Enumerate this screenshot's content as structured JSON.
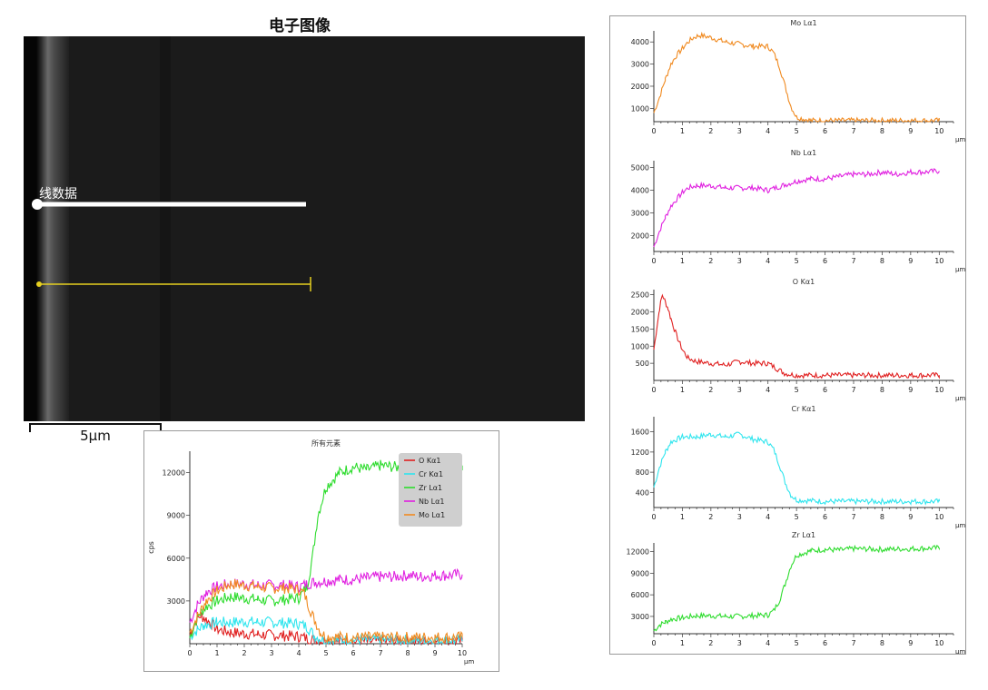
{
  "sem": {
    "title": "电子图像",
    "line_label": "线数据",
    "scale_label": "5μm"
  },
  "chart_data": [
    {
      "id": "all",
      "type": "line",
      "title": "所有元素",
      "ylabel": "cps",
      "xunit": "μm",
      "xlim": [
        0,
        10
      ],
      "ylim": [
        0,
        13500
      ],
      "xticks": [
        0,
        1,
        2,
        3,
        4,
        5,
        6,
        7,
        8,
        9,
        10
      ],
      "yticks": [
        3000,
        6000,
        9000,
        12000
      ],
      "legend_position": "top-right",
      "series": [
        {
          "name": "O Kα1",
          "color": "#e02020",
          "x": [
            0,
            0.2,
            0.4,
            0.6,
            0.8,
            1,
            1.5,
            2,
            2.5,
            3,
            3.5,
            4,
            4.5,
            5,
            6,
            7,
            8,
            9,
            10
          ],
          "y": [
            600,
            1500,
            2000,
            1700,
            1400,
            1000,
            800,
            700,
            650,
            600,
            550,
            500,
            300,
            200,
            150,
            150,
            150,
            150,
            150
          ]
        },
        {
          "name": "Cr Kα1",
          "color": "#2ee5ee",
          "x": [
            0,
            0.3,
            0.5,
            1,
            1.5,
            2,
            2.5,
            3,
            3.5,
            4,
            4.3,
            4.6,
            5,
            6,
            7,
            8,
            9,
            10
          ],
          "y": [
            500,
            1000,
            1300,
            1500,
            1500,
            1550,
            1500,
            1500,
            1450,
            1400,
            1200,
            500,
            250,
            250,
            250,
            250,
            250,
            250
          ]
        },
        {
          "name": "Zr Lα1",
          "color": "#2edc2e",
          "x": [
            0,
            0.2,
            0.4,
            0.6,
            1,
            1.5,
            2,
            2.5,
            3,
            3.5,
            4,
            4.3,
            4.5,
            4.7,
            5,
            5.5,
            6,
            6.5,
            7,
            8,
            9,
            10
          ],
          "y": [
            400,
            1500,
            2200,
            2600,
            3000,
            3300,
            3200,
            3100,
            3000,
            3100,
            3200,
            4000,
            6000,
            9000,
            11000,
            12000,
            12400,
            12200,
            12500,
            12300,
            12400,
            12500
          ]
        },
        {
          "name": "Nb Lα1",
          "color": "#e020e0",
          "x": [
            0,
            0.3,
            0.6,
            1,
            1.5,
            2,
            2.5,
            3,
            3.5,
            4,
            4.5,
            5,
            5.5,
            6,
            6.5,
            7,
            7.5,
            8,
            8.5,
            9,
            9.5,
            10
          ],
          "y": [
            1500,
            2800,
            3600,
            4000,
            4200,
            4200,
            4100,
            4100,
            4100,
            4000,
            4300,
            4400,
            4500,
            4500,
            4600,
            4700,
            4700,
            4800,
            4700,
            4800,
            4800,
            4850
          ]
        },
        {
          "name": "Mo Lα1",
          "color": "#f08a20",
          "x": [
            0,
            0.3,
            0.6,
            1,
            1.5,
            2,
            2.5,
            3,
            3.5,
            4,
            4.2,
            4.5,
            4.8,
            5,
            6,
            7,
            8,
            9,
            10
          ],
          "y": [
            800,
            2000,
            3000,
            3700,
            4200,
            4100,
            4000,
            3900,
            3900,
            3800,
            3500,
            2000,
            800,
            500,
            450,
            450,
            450,
            450,
            450
          ]
        }
      ]
    },
    {
      "id": "mo",
      "type": "line",
      "title": "Mo Lα1",
      "xunit": "μm",
      "xlim": [
        0,
        10.5
      ],
      "ylim": [
        400,
        4500
      ],
      "xticks": [
        0,
        1,
        2,
        3,
        4,
        5,
        6,
        7,
        8,
        9,
        10
      ],
      "yticks": [
        1000,
        2000,
        3000,
        4000
      ],
      "series": [
        {
          "name": "Mo Lα1",
          "color": "#f08a20",
          "x": [
            0,
            0.2,
            0.4,
            0.6,
            0.8,
            1,
            1.2,
            1.4,
            1.6,
            2,
            2.5,
            3,
            3.5,
            4,
            4.2,
            4.4,
            4.6,
            4.8,
            5,
            5.5,
            6,
            7,
            8,
            9,
            10
          ],
          "y": [
            800,
            1500,
            2300,
            3000,
            3400,
            3700,
            4000,
            4200,
            4300,
            4200,
            4000,
            3900,
            3800,
            3800,
            3500,
            2900,
            2000,
            1100,
            600,
            450,
            450,
            450,
            450,
            450,
            450
          ]
        }
      ]
    },
    {
      "id": "nb",
      "type": "line",
      "title": "Nb Lα1",
      "xunit": "μm",
      "xlim": [
        0,
        10.5
      ],
      "ylim": [
        1300,
        5300
      ],
      "xticks": [
        0,
        1,
        2,
        3,
        4,
        5,
        6,
        7,
        8,
        9,
        10
      ],
      "yticks": [
        2000,
        3000,
        4000,
        5000
      ],
      "series": [
        {
          "name": "Nb Lα1",
          "color": "#e020e0",
          "x": [
            0,
            0.2,
            0.4,
            0.6,
            0.8,
            1,
            1.2,
            1.5,
            2,
            2.5,
            3,
            3.5,
            4,
            4.5,
            5,
            5.5,
            6,
            6.5,
            7,
            7.5,
            8,
            8.5,
            9,
            9.5,
            10
          ],
          "y": [
            1500,
            2200,
            2800,
            3300,
            3600,
            3900,
            4100,
            4200,
            4200,
            4100,
            4100,
            4100,
            4000,
            4200,
            4400,
            4500,
            4500,
            4600,
            4700,
            4700,
            4800,
            4700,
            4800,
            4800,
            4850
          ]
        }
      ]
    },
    {
      "id": "o",
      "type": "line",
      "title": "O Kα1",
      "xunit": "μm",
      "xlim": [
        0,
        10.5
      ],
      "ylim": [
        0,
        2650
      ],
      "xticks": [
        0,
        1,
        2,
        3,
        4,
        5,
        6,
        7,
        8,
        9,
        10
      ],
      "yticks": [
        500,
        1000,
        1500,
        2000,
        2500
      ],
      "series": [
        {
          "name": "O Kα1",
          "color": "#e02020",
          "x": [
            0,
            0.1,
            0.2,
            0.3,
            0.4,
            0.5,
            0.6,
            0.8,
            1,
            1.2,
            1.5,
            2,
            2.5,
            3,
            3.5,
            4,
            4.3,
            4.6,
            5,
            6,
            7,
            8,
            9,
            10
          ],
          "y": [
            900,
            1500,
            2100,
            2500,
            2300,
            2100,
            1800,
            1300,
            900,
            650,
            550,
            500,
            450,
            550,
            500,
            500,
            350,
            200,
            150,
            150,
            150,
            150,
            150,
            150
          ]
        }
      ]
    },
    {
      "id": "cr",
      "type": "line",
      "title": "Cr Kα1",
      "xunit": "μm",
      "xlim": [
        0,
        10.5
      ],
      "ylim": [
        100,
        1900
      ],
      "xticks": [
        0,
        1,
        2,
        3,
        4,
        5,
        6,
        7,
        8,
        9,
        10
      ],
      "yticks": [
        400,
        800,
        1200,
        1600
      ],
      "series": [
        {
          "name": "Cr Kα1",
          "color": "#2ee5ee",
          "x": [
            0,
            0.2,
            0.4,
            0.6,
            1,
            1.5,
            2,
            2.5,
            3,
            3.5,
            4,
            4.2,
            4.4,
            4.6,
            4.8,
            5,
            6,
            7,
            8,
            9,
            10
          ],
          "y": [
            500,
            900,
            1200,
            1400,
            1500,
            1500,
            1550,
            1500,
            1550,
            1450,
            1400,
            1250,
            950,
            600,
            350,
            250,
            220,
            220,
            220,
            220,
            220
          ]
        }
      ]
    },
    {
      "id": "zr",
      "type": "line",
      "title": "Zr Lα1",
      "xunit": "μm",
      "xlim": [
        0,
        10.5
      ],
      "ylim": [
        600,
        13200
      ],
      "xticks": [
        0,
        1,
        2,
        3,
        4,
        5,
        6,
        7,
        8,
        9,
        10
      ],
      "yticks": [
        3000,
        6000,
        9000,
        12000
      ],
      "series": [
        {
          "name": "Zr Lα1",
          "color": "#2edc2e",
          "x": [
            0,
            0.2,
            0.4,
            0.6,
            1,
            1.5,
            2,
            2.5,
            3,
            3.5,
            4,
            4.2,
            4.4,
            4.6,
            4.8,
            5,
            5.5,
            6,
            6.5,
            7,
            8,
            9,
            10
          ],
          "y": [
            1000,
            1800,
            2200,
            2600,
            2800,
            3100,
            3100,
            3000,
            3000,
            3100,
            3200,
            3800,
            5200,
            7500,
            10000,
            11500,
            12100,
            12300,
            12200,
            12400,
            12300,
            12400,
            12500
          ]
        }
      ]
    }
  ]
}
